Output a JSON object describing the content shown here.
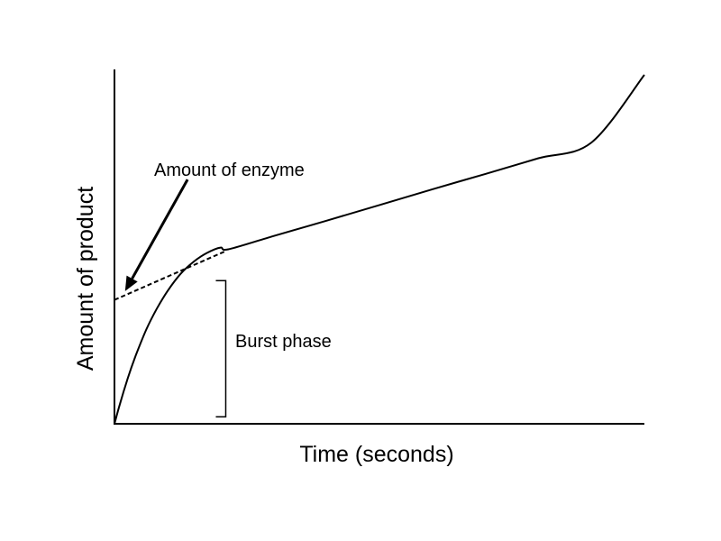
{
  "chart_data": {
    "type": "line",
    "title": "",
    "xlabel": "Time (seconds)",
    "ylabel": "Amount of product",
    "xlim": [
      0,
      10
    ],
    "ylim": [
      0,
      10
    ],
    "grid": false,
    "legend": "none",
    "colors": {
      "line": "#000000",
      "background": "#ffffff"
    },
    "series": [
      {
        "style": "solid",
        "x": [
          0,
          0.1,
          0.25,
          0.4,
          0.6,
          0.8,
          1.0,
          1.25,
          1.5,
          1.75,
          2.0,
          2.15,
          3.0,
          4.0,
          5.0,
          6.0,
          7.0,
          8.0,
          9.0,
          10.0
        ],
        "y": [
          0,
          0.55,
          1.3,
          1.95,
          2.7,
          3.3,
          3.8,
          4.3,
          4.65,
          4.9,
          5.05,
          5.0,
          5.38,
          5.82,
          6.27,
          6.72,
          7.16,
          7.61,
          8.06,
          10.0
        ]
      },
      {
        "style": "dashed",
        "x": [
          0,
          2.1
        ],
        "y": [
          3.55,
          4.95
        ]
      }
    ],
    "annotations": {
      "enzyme_label": "Amount of enzyme",
      "burst_label": "Burst phase",
      "enzyme_arrow": {
        "from": [
          1.38,
          7.0
        ],
        "to": [
          0.2,
          3.8
        ]
      },
      "burst_bracket": {
        "x": 2.1,
        "y_low": 0.2,
        "y_high": 4.1
      }
    }
  }
}
